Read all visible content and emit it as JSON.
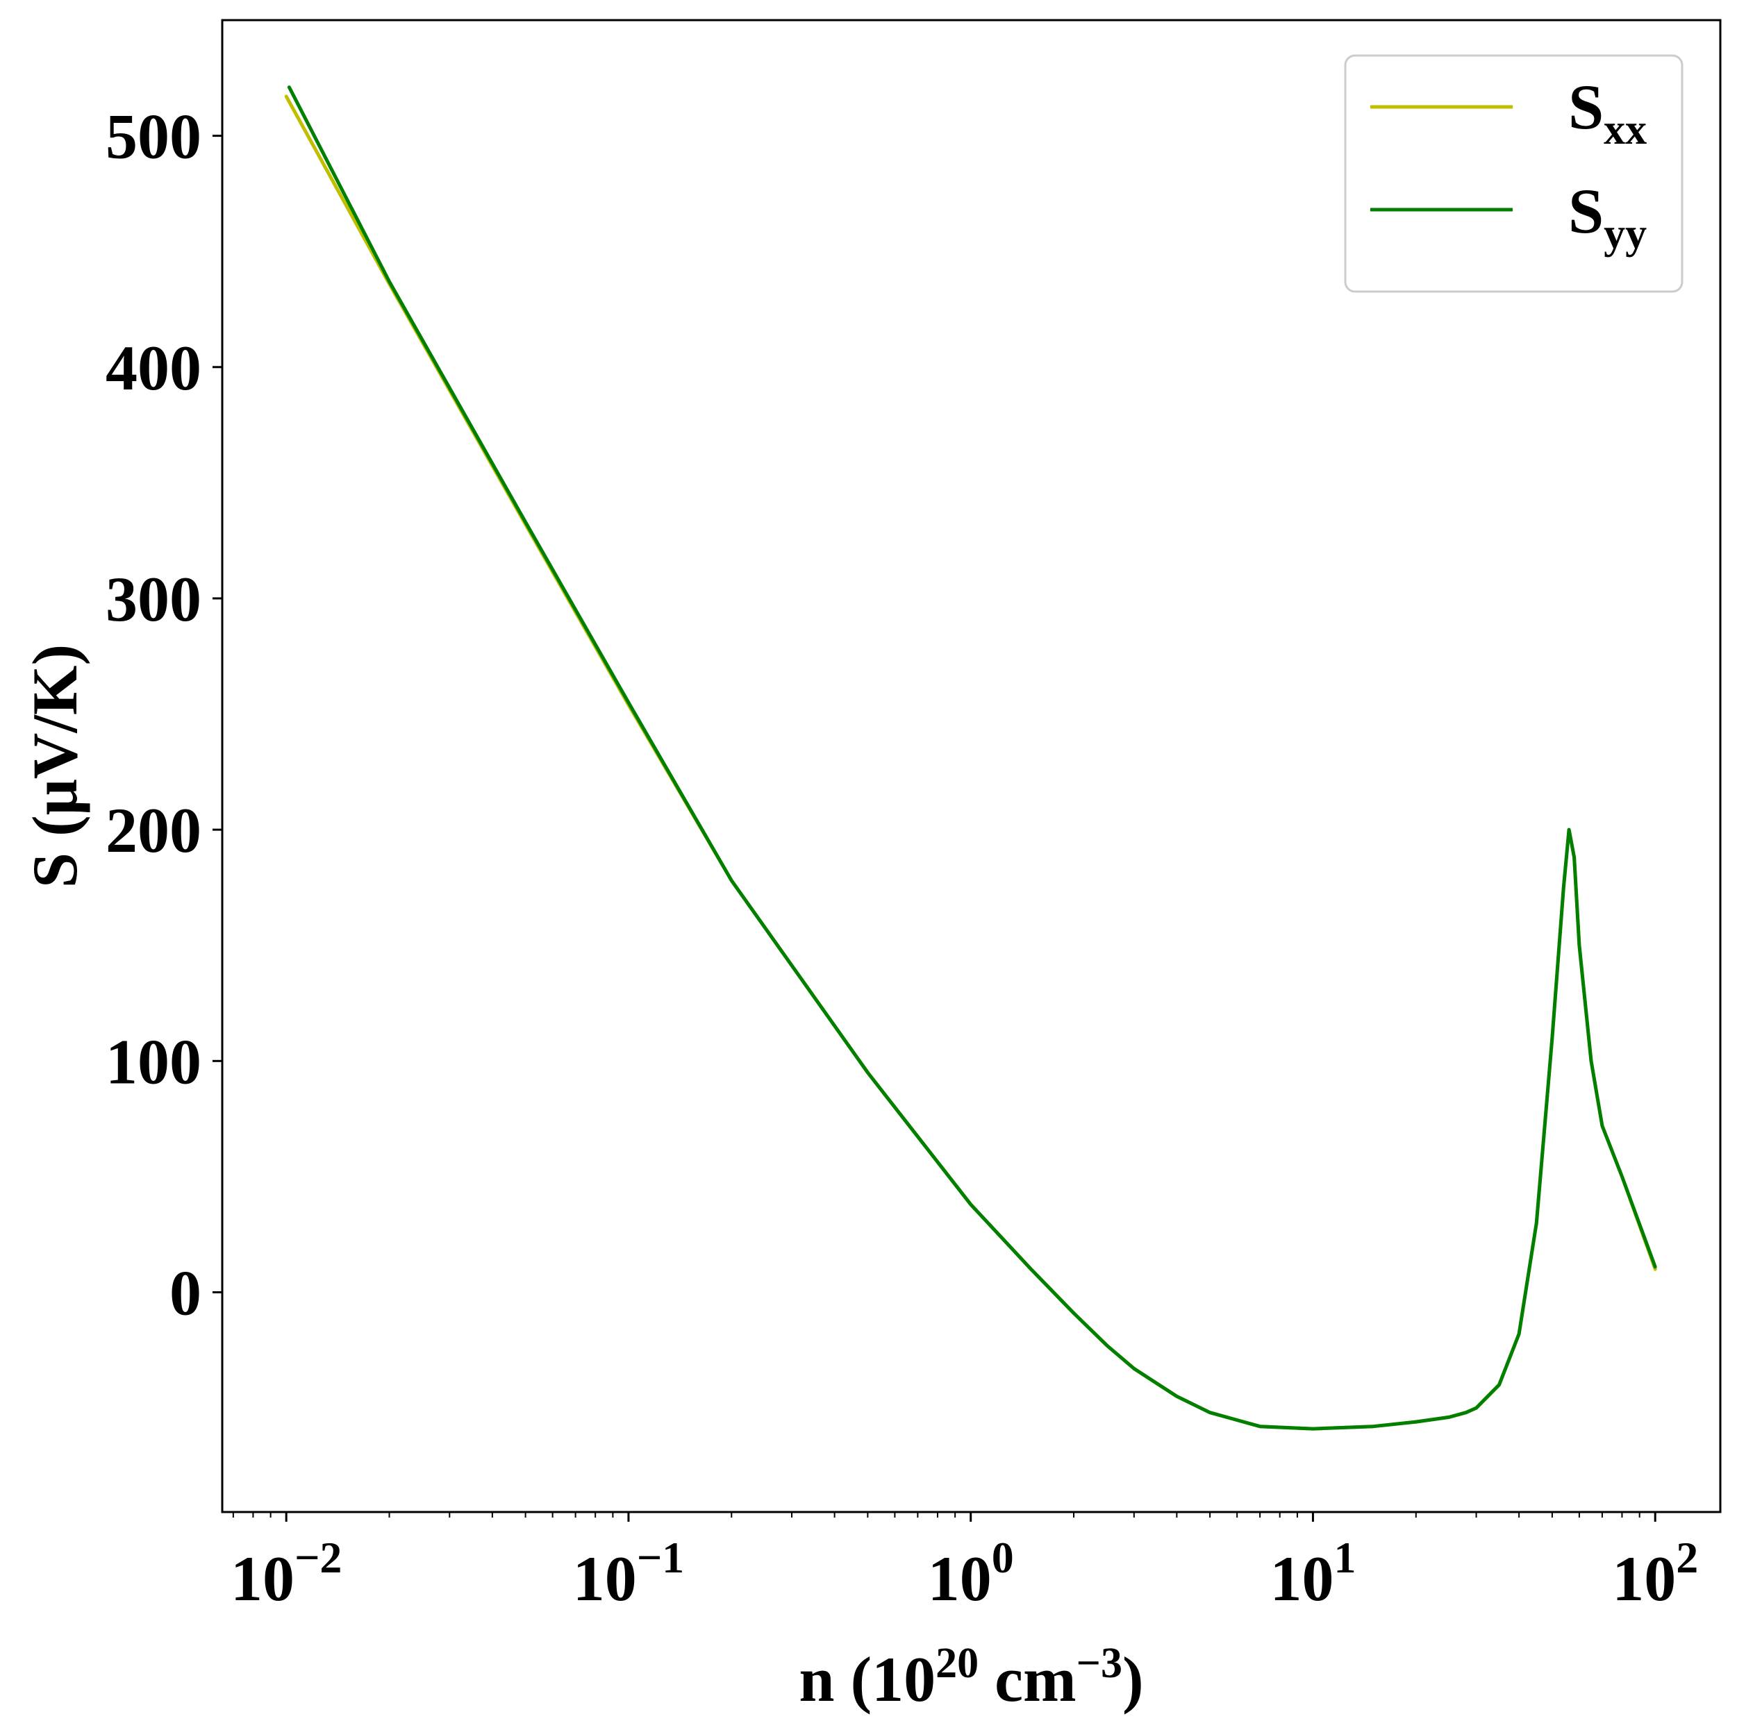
{
  "chart_data": {
    "type": "line",
    "xlabel": {
      "base": "n (10",
      "sup1": "20",
      "mid": " cm",
      "sup2": "−3",
      "end": ")"
    },
    "ylabel": "S (μV/K)",
    "xscale": "log",
    "xlim": [
      0.0065,
      155
    ],
    "ylim": [
      -95,
      550
    ],
    "grid": false,
    "legend_position": "top-right",
    "xticks": [
      {
        "value": 0.01,
        "base": "10",
        "exp": "−2"
      },
      {
        "value": 0.1,
        "base": "10",
        "exp": "−1"
      },
      {
        "value": 1,
        "base": "10",
        "exp": "0"
      },
      {
        "value": 10,
        "base": "10",
        "exp": "1"
      },
      {
        "value": 100,
        "base": "10",
        "exp": "2"
      }
    ],
    "yticks": [
      0,
      100,
      200,
      300,
      400,
      500
    ],
    "series": [
      {
        "name": "S",
        "sub": "xx",
        "color": "#bfbf00",
        "points": [
          [
            0.01,
            517
          ],
          [
            0.02,
            436
          ],
          [
            0.05,
            332
          ],
          [
            0.1,
            254
          ],
          [
            0.2,
            178
          ],
          [
            0.5,
            95
          ],
          [
            1,
            38
          ],
          [
            1.5,
            10
          ],
          [
            2,
            -9
          ],
          [
            2.5,
            -23
          ],
          [
            3,
            -33
          ],
          [
            4,
            -45
          ],
          [
            5,
            -52
          ],
          [
            7,
            -58
          ],
          [
            10,
            -59
          ],
          [
            15,
            -58
          ],
          [
            20,
            -56
          ],
          [
            25,
            -54
          ],
          [
            28,
            -52
          ],
          [
            30,
            -50
          ],
          [
            35,
            -40
          ],
          [
            40,
            -18
          ],
          [
            45,
            30
          ],
          [
            50,
            110
          ],
          [
            54,
            175
          ],
          [
            56,
            200
          ],
          [
            58,
            188
          ],
          [
            60,
            150
          ],
          [
            65,
            100
          ],
          [
            70,
            72
          ],
          [
            80,
            50
          ],
          [
            100,
            10
          ]
        ]
      },
      {
        "name": "S",
        "sub": "yy",
        "color": "#007f00",
        "points": [
          [
            0.0102,
            521
          ],
          [
            0.02,
            437
          ],
          [
            0.05,
            333
          ],
          [
            0.1,
            255
          ],
          [
            0.2,
            178
          ],
          [
            0.5,
            95
          ],
          [
            1,
            38
          ],
          [
            1.5,
            10
          ],
          [
            2,
            -9
          ],
          [
            2.5,
            -23
          ],
          [
            3,
            -33
          ],
          [
            4,
            -45
          ],
          [
            5,
            -52
          ],
          [
            7,
            -58
          ],
          [
            10,
            -59
          ],
          [
            15,
            -58
          ],
          [
            20,
            -56
          ],
          [
            25,
            -54
          ],
          [
            28,
            -52
          ],
          [
            30,
            -50
          ],
          [
            35,
            -40
          ],
          [
            40,
            -18
          ],
          [
            45,
            30
          ],
          [
            50,
            110
          ],
          [
            54,
            175
          ],
          [
            56,
            200
          ],
          [
            58,
            188
          ],
          [
            60,
            150
          ],
          [
            65,
            100
          ],
          [
            70,
            72
          ],
          [
            80,
            50
          ],
          [
            100,
            11
          ]
        ]
      }
    ]
  }
}
